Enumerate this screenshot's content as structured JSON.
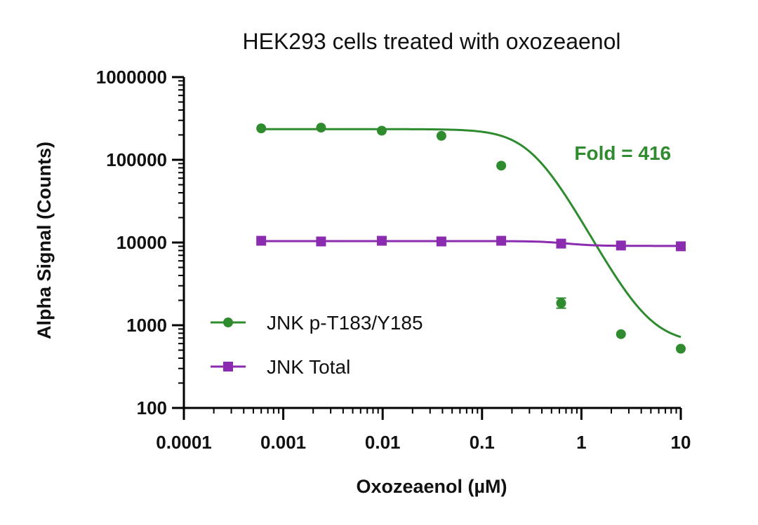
{
  "chart_data": {
    "type": "scatter",
    "title": "HEK293 cells treated with oxozeaenol",
    "xlabel": "Oxozeaenol (µM)",
    "ylabel": "Alpha Signal (Counts)",
    "xscale": "log",
    "yscale": "log",
    "xlim": [
      0.0001,
      10
    ],
    "ylim": [
      100,
      1000000
    ],
    "x_ticks": [
      "0.0001",
      "0.001",
      "0.01",
      "0.1",
      "1",
      "10"
    ],
    "y_ticks": [
      "100",
      "1000",
      "10000",
      "100000",
      "1000000"
    ],
    "grid": false,
    "legend_position": "bottom-left",
    "series": [
      {
        "name": "JNK p-T183/Y185",
        "color": "#2e8b2e",
        "marker": "circle",
        "x": [
          0.0006,
          0.0024,
          0.0098,
          0.039,
          0.156,
          0.625,
          2.5,
          10
        ],
        "y": [
          240000,
          245000,
          225000,
          195000,
          85000,
          1850,
          780,
          520
        ],
        "fit": "sigmoid",
        "fit_params": {
          "top": 235000,
          "bottom": 600,
          "ec50": 0.32,
          "hill": -2.2
        }
      },
      {
        "name": "JNK Total",
        "color": "#8a2bb0",
        "marker": "square",
        "x": [
          0.0006,
          0.0024,
          0.0098,
          0.039,
          0.156,
          0.625,
          2.5,
          10
        ],
        "y": [
          10500,
          10300,
          10500,
          10300,
          10500,
          9700,
          9200,
          9000
        ],
        "fit": "sigmoid",
        "fit_params": {
          "top": 10400,
          "bottom": 9100,
          "ec50": 0.7,
          "hill": -3
        }
      }
    ],
    "annotations": [
      {
        "text": "Fold = 416",
        "color": "#2e8b2e",
        "x": 0.85,
        "y": 100000
      }
    ]
  }
}
